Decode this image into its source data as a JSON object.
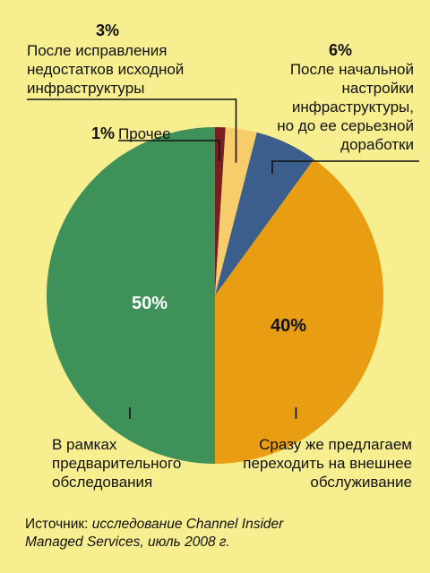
{
  "colors": {
    "background": "#f7ee8f",
    "other": "#7a1f1f",
    "after_fix": "#f7cc6a",
    "after_setup": "#3c5e8c",
    "outsource": "#e89d12",
    "preliminary": "#3e9158",
    "leader": "#111111"
  },
  "chart_data": {
    "type": "pie",
    "start": "12 o'clock, clockwise",
    "slices": [
      {
        "key": "other",
        "pct": "1%",
        "value": 1,
        "label": "Прочее",
        "label_lines": [
          "Прочее"
        ],
        "color": "#7a1f1f"
      },
      {
        "key": "after_fix",
        "pct": "3%",
        "value": 3,
        "label": "После исправления недостатков исходной инфраструктуры",
        "label_lines": [
          "После исправления",
          "недостатков исходной",
          "инфраструктуры"
        ],
        "color": "#f7cc6a"
      },
      {
        "key": "after_setup",
        "pct": "6%",
        "value": 6,
        "label": "После начальной настройки инфраструктуры, но до ее серьезной доработки",
        "label_lines": [
          "После начальной",
          "настройки",
          "инфраструктуры,",
          "но до ее серьезной",
          "доработки"
        ],
        "color": "#3c5e8c"
      },
      {
        "key": "outsource",
        "pct": "40%",
        "value": 40,
        "label": "Сразу же предлагаем переходить на внешнее обслуживание",
        "label_lines": [
          "Сразу же предлагаем",
          "переходить на внешнее",
          "обслуживание"
        ],
        "color": "#e89d12"
      },
      {
        "key": "preliminary",
        "pct": "50%",
        "value": 50,
        "label": "В рамках предварительного обследования",
        "label_lines": [
          "В рамках",
          "предварительного",
          "обследования"
        ],
        "color": "#3e9158"
      }
    ]
  },
  "source": {
    "prefix": "Источник: ",
    "line1": "исследование Channel Insider",
    "line2": "Managed Services, июль 2008 г."
  }
}
